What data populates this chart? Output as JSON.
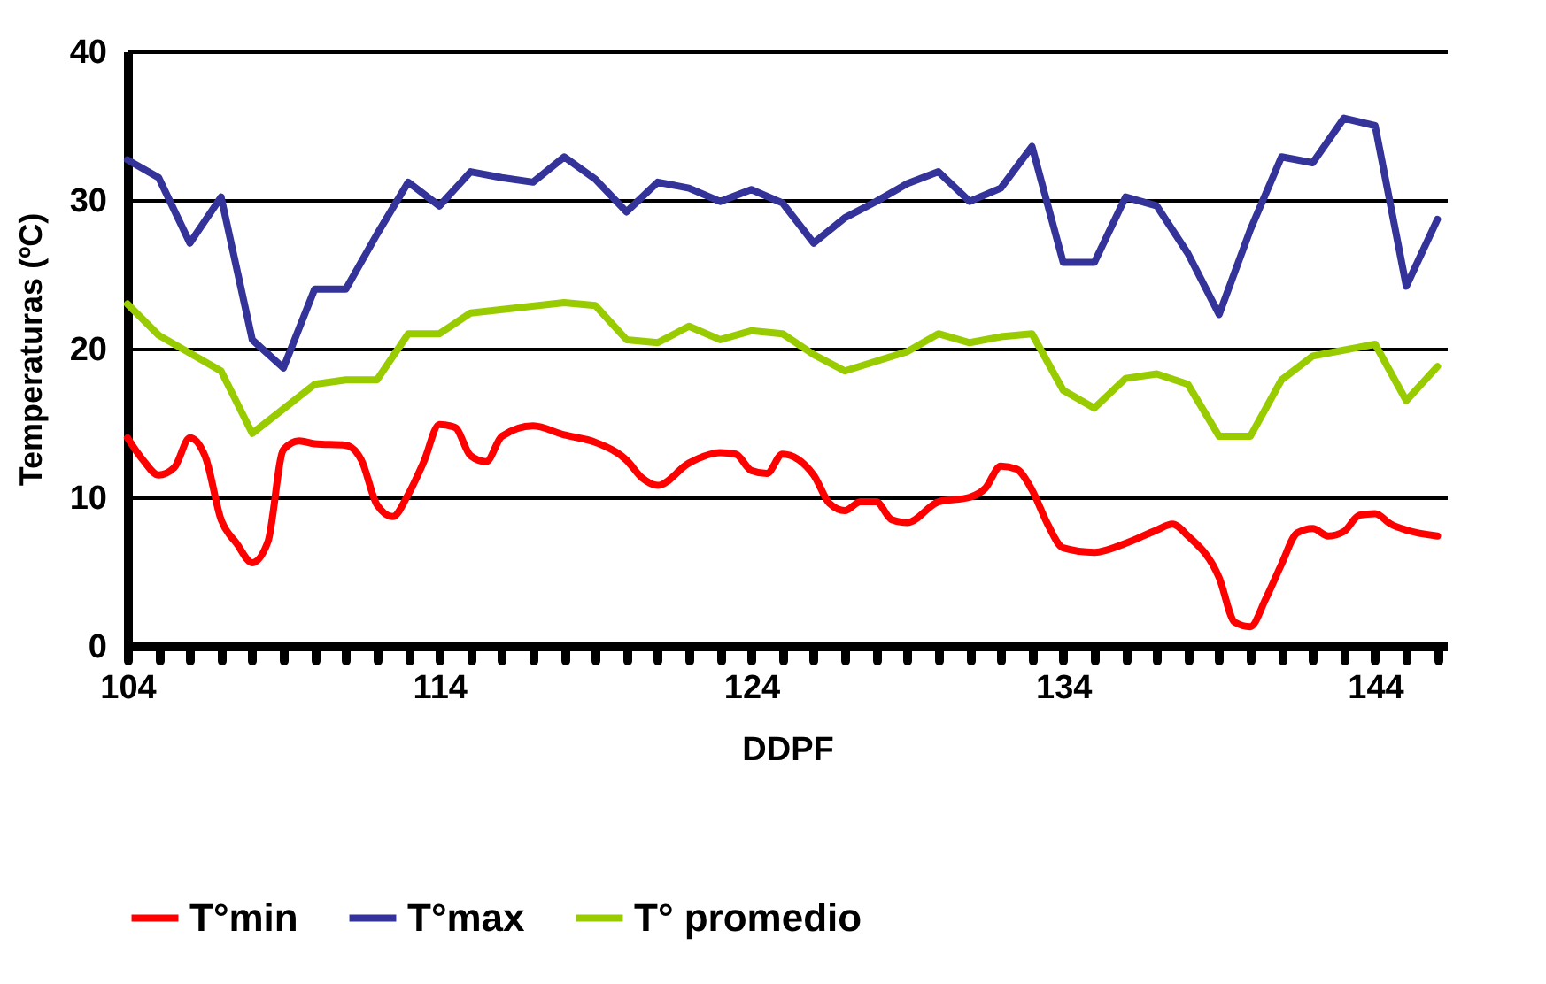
{
  "chart_data": {
    "type": "line",
    "xlabel": "DDPF",
    "ylabel": "Temperaturas (ºC)",
    "xlim": [
      104,
      146.3
    ],
    "xticks": [
      104,
      {
        "value": 105,
        "label": null
      },
      {
        "value": 106,
        "label": null
      },
      {
        "value": 107,
        "label": null
      },
      {
        "value": 108,
        "label": null
      },
      {
        "value": 109,
        "label": null
      },
      {
        "value": 110,
        "label": null
      },
      {
        "value": 111,
        "label": null
      },
      {
        "value": 112,
        "label": null
      },
      {
        "value": 113,
        "label": null
      },
      114,
      {
        "value": 115,
        "label": null
      },
      {
        "value": 116,
        "label": null
      },
      {
        "value": 117,
        "label": null
      },
      {
        "value": 118,
        "label": null
      },
      {
        "value": 119,
        "label": null
      },
      {
        "value": 120,
        "label": null
      },
      {
        "value": 121,
        "label": null
      },
      {
        "value": 122,
        "label": null
      },
      {
        "value": 123,
        "label": null
      },
      124,
      {
        "value": 125,
        "label": null
      },
      {
        "value": 126,
        "label": null
      },
      {
        "value": 127,
        "label": null
      },
      {
        "value": 128,
        "label": null
      },
      {
        "value": 129,
        "label": null
      },
      {
        "value": 130,
        "label": null
      },
      {
        "value": 131,
        "label": null
      },
      {
        "value": 132,
        "label": null
      },
      {
        "value": 133,
        "label": null
      },
      134,
      {
        "value": 135,
        "label": null
      },
      {
        "value": 136,
        "label": null
      },
      {
        "value": 137,
        "label": null
      },
      {
        "value": 138,
        "label": null
      },
      {
        "value": 139,
        "label": null
      },
      {
        "value": 140,
        "label": null
      },
      {
        "value": 141,
        "label": null
      },
      {
        "value": 142,
        "label": null
      },
      {
        "value": 143,
        "label": null
      },
      144,
      {
        "value": 145,
        "label": null
      },
      {
        "value": 146,
        "label": null
      }
    ],
    "ylim": [
      0,
      40
    ],
    "yticks": [
      0,
      10,
      20,
      30,
      40
    ],
    "grid": "y",
    "legend": "bottom",
    "marker": "none",
    "line_style": "solid",
    "series": [
      {
        "name": "T°min",
        "color": "#ff0000",
        "x": [
          104,
          104.5,
          105,
          105.5,
          106,
          106.5,
          107,
          107.5,
          108,
          108.5,
          109,
          109.5,
          110,
          111,
          111.5,
          112,
          112.5,
          113,
          113.5,
          114,
          114.5,
          115,
          115.5,
          116,
          117,
          118,
          119,
          120,
          120.5,
          121,
          122,
          123,
          123.5,
          124,
          124.5,
          125,
          126,
          126.5,
          127,
          127.5,
          128,
          128.5,
          129,
          130,
          131,
          131.5,
          132,
          132.5,
          133,
          133.5,
          134,
          135,
          136,
          137,
          137.5,
          138,
          139,
          139.5,
          140,
          140.5,
          141,
          141.5,
          142,
          142.5,
          143,
          143.5,
          144,
          144.5,
          145,
          146
        ],
        "values": [
          14.0,
          12.5,
          11.5,
          12,
          14.0,
          12.7,
          8.5,
          6.9,
          5.6,
          7,
          13.2,
          13.8,
          13.6,
          13.5,
          12.5,
          9.5,
          8.7,
          10.2,
          12.4,
          14.9,
          14.7,
          12.8,
          12.4,
          14.1,
          14.8,
          14.2,
          13.7,
          12.5,
          11.3,
          10.8,
          12.3,
          13.0,
          12.9,
          11.8,
          11.6,
          12.9,
          11.5,
          9.6,
          9.1,
          9.7,
          9.7,
          8.5,
          8.3,
          9.7,
          10.0,
          10.6,
          12.1,
          11.9,
          10.5,
          8.2,
          6.6,
          6.3,
          6.9,
          7.8,
          8.2,
          7.4,
          4.6,
          1.6,
          1.3,
          3.2,
          5.5,
          7.6,
          7.9,
          7.4,
          7.7,
          8.8,
          8.9,
          8.2,
          7.8,
          7.4
        ]
      },
      {
        "name": "T°max",
        "color": "#333399",
        "x": [
          104,
          105,
          106,
          107,
          108,
          109,
          110,
          111,
          112,
          113,
          114,
          115,
          116,
          117,
          118,
          119,
          120,
          121,
          122,
          123,
          124,
          125,
          126,
          127,
          128,
          129,
          130,
          131,
          132,
          133,
          134,
          135,
          136,
          137,
          138,
          139,
          140,
          141,
          142,
          143,
          144,
          145,
          146
        ],
        "values": [
          32.7,
          31.5,
          27.1,
          30.2,
          20.6,
          18.7,
          24,
          24,
          27.7,
          31.2,
          29.6,
          31.9,
          31.5,
          31.2,
          32.9,
          31.4,
          29.2,
          31.2,
          30.8,
          29.9,
          30.7,
          29.8,
          27.1,
          28.8,
          29.9,
          31.1,
          31.9,
          29.9,
          30.8,
          33.6,
          25.8,
          25.8,
          30.2,
          29.6,
          26.4,
          22.3,
          28,
          32.9,
          32.5,
          35.5,
          35,
          24.2,
          28.7
        ]
      },
      {
        "name": "T° promedio",
        "color": "#99cc00",
        "x": [
          104,
          105,
          107,
          108,
          110,
          111,
          112,
          113,
          114,
          115,
          118,
          119,
          120,
          121,
          122,
          123,
          124,
          125,
          126,
          127,
          129,
          130,
          131,
          132,
          133,
          134,
          135,
          136,
          137,
          138,
          139,
          140,
          141,
          142,
          144,
          145,
          146
        ],
        "values": [
          23,
          20.9,
          18.5,
          14.3,
          17.6,
          17.9,
          17.9,
          21.0,
          21.0,
          22.4,
          23.1,
          22.9,
          20.6,
          20.4,
          21.5,
          20.6,
          21.2,
          21.0,
          19.6,
          18.5,
          19.8,
          21.0,
          20.4,
          20.8,
          21.0,
          17.2,
          16.0,
          18.0,
          18.3,
          17.6,
          14.1,
          14.1,
          17.9,
          19.5,
          20.3,
          16.5,
          18.8
        ]
      }
    ]
  }
}
